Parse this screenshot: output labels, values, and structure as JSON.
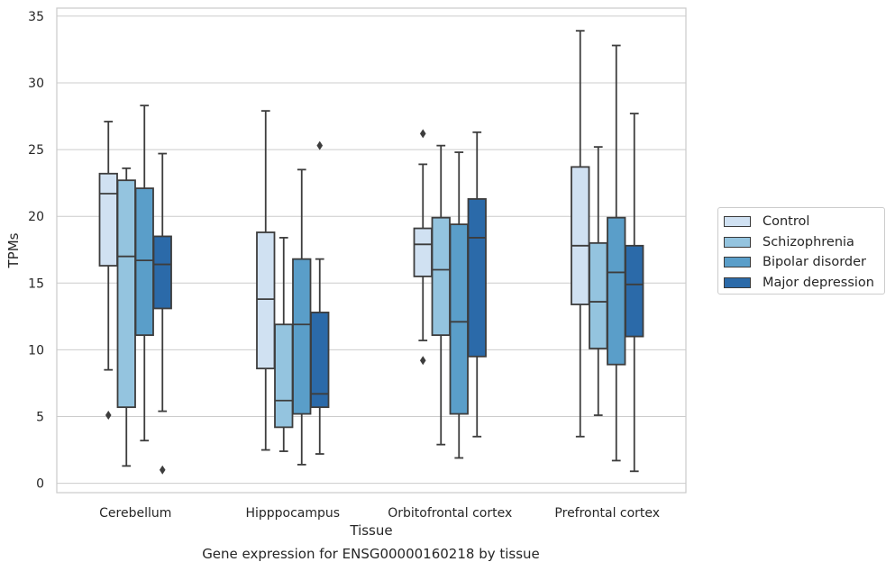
{
  "chart_data": {
    "type": "boxplot",
    "xlabel": "Tissue",
    "ylabel": "TPMs",
    "ylim": [
      -0.7,
      35.6
    ],
    "yticks": [
      0,
      5,
      10,
      15,
      20,
      25,
      30,
      35
    ],
    "grid": "horizontal",
    "legend_position": "right-outside",
    "categories": [
      "Cerebellum",
      "Hipppocampus",
      "Orbitofrontal cortex",
      "Prefrontal cortex"
    ],
    "series": [
      {
        "name": "Control",
        "color": "#d0e1f2",
        "boxes": [
          {
            "whislo": 8.5,
            "q1": 16.3,
            "med": 21.7,
            "q3": 23.2,
            "whishi": 27.1,
            "fliers": [
              5.1
            ]
          },
          {
            "whislo": 2.5,
            "q1": 8.6,
            "med": 13.8,
            "q3": 18.8,
            "whishi": 27.9,
            "fliers": []
          },
          {
            "whislo": 10.7,
            "q1": 15.5,
            "med": 17.9,
            "q3": 19.1,
            "whishi": 23.9,
            "fliers": [
              26.2,
              9.2
            ]
          },
          {
            "whislo": 3.5,
            "q1": 13.4,
            "med": 17.8,
            "q3": 23.7,
            "whishi": 33.9,
            "fliers": []
          }
        ]
      },
      {
        "name": "Schizophrenia",
        "color": "#94c4df",
        "boxes": [
          {
            "whislo": 1.3,
            "q1": 5.7,
            "med": 17.0,
            "q3": 22.7,
            "whishi": 23.6,
            "fliers": []
          },
          {
            "whislo": 2.4,
            "q1": 4.2,
            "med": 6.2,
            "q3": 11.9,
            "whishi": 18.4,
            "fliers": []
          },
          {
            "whislo": 2.9,
            "q1": 11.1,
            "med": 16.0,
            "q3": 19.9,
            "whishi": 25.3,
            "fliers": []
          },
          {
            "whislo": 5.1,
            "q1": 10.1,
            "med": 13.6,
            "q3": 18.0,
            "whishi": 25.2,
            "fliers": []
          }
        ]
      },
      {
        "name": "Bipolar disorder",
        "color": "#5a9ec9",
        "boxes": [
          {
            "whislo": 3.2,
            "q1": 11.1,
            "med": 16.7,
            "q3": 22.1,
            "whishi": 28.3,
            "fliers": []
          },
          {
            "whislo": 1.4,
            "q1": 5.2,
            "med": 11.9,
            "q3": 16.8,
            "whishi": 23.5,
            "fliers": []
          },
          {
            "whislo": 1.9,
            "q1": 5.2,
            "med": 12.1,
            "q3": 19.4,
            "whishi": 24.8,
            "fliers": []
          },
          {
            "whislo": 1.7,
            "q1": 8.9,
            "med": 15.8,
            "q3": 19.9,
            "whishi": 32.8,
            "fliers": []
          }
        ]
      },
      {
        "name": "Major depression",
        "color": "#2b6aa9",
        "boxes": [
          {
            "whislo": 5.4,
            "q1": 13.1,
            "med": 16.4,
            "q3": 18.5,
            "whishi": 24.7,
            "fliers": [
              1.0
            ]
          },
          {
            "whislo": 2.2,
            "q1": 5.7,
            "med": 6.7,
            "q3": 12.8,
            "whishi": 16.8,
            "fliers": [
              25.3
            ]
          },
          {
            "whislo": 3.5,
            "q1": 9.5,
            "med": 18.4,
            "q3": 21.3,
            "whishi": 26.3,
            "fliers": []
          },
          {
            "whislo": 0.9,
            "q1": 11.0,
            "med": 14.9,
            "q3": 17.8,
            "whishi": 27.7,
            "fliers": []
          }
        ]
      }
    ],
    "caption": "Gene expression for ENSG00000160218 by tissue"
  }
}
